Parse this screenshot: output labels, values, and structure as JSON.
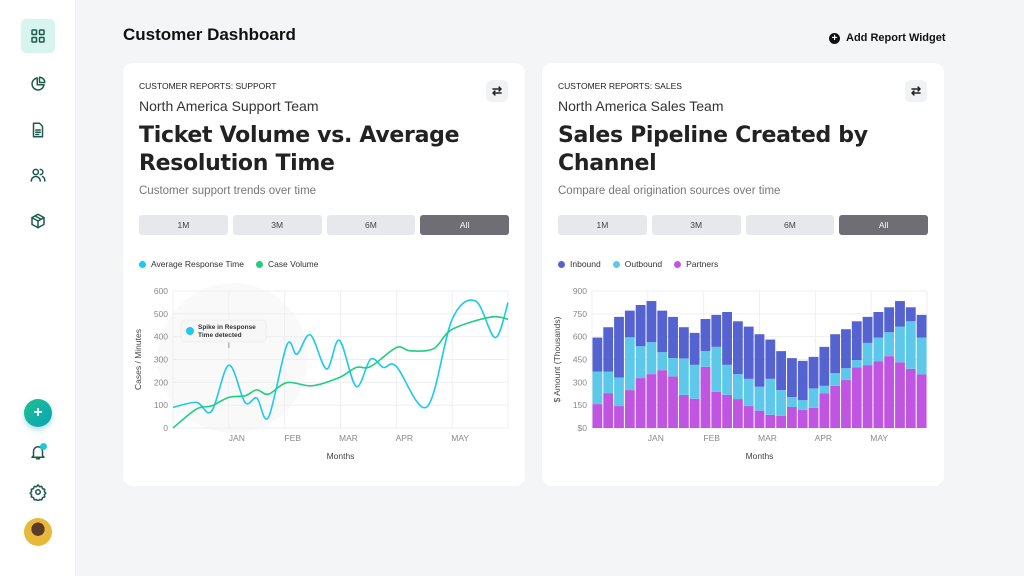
{
  "header": {
    "title": "Customer Dashboard",
    "add_widget": "Add Report Widget"
  },
  "sidebar": {
    "items": [
      "dashboard-grid",
      "pie-chart",
      "document",
      "users",
      "package"
    ],
    "bottom": [
      "add",
      "bell",
      "settings",
      "avatar"
    ]
  },
  "colors": {
    "accent": "#1d5a4c",
    "response": "#1ec8f0",
    "volume": "#1fce7e",
    "inbound": "#5463cf",
    "outbound": "#5ec8ea",
    "partners": "#c055e2"
  },
  "cards": [
    {
      "eyebrow": "CUSTOMER REPORTS: SUPPORT",
      "team": "North America Support Team",
      "title": "Ticket Volume vs. Average Resolution Time",
      "subtitle": "Customer support trends over time",
      "ranges": [
        "1M",
        "3M",
        "6M",
        "All"
      ],
      "selected_range": "All",
      "legend": [
        "Average Response Time",
        "Case Volume"
      ],
      "annotation": "Spike in Response Time detected"
    },
    {
      "eyebrow": "CUSTOMER REPORTS: SALES",
      "team": "North America Sales Team",
      "title": "Sales Pipeline Created by Channel",
      "subtitle": "Compare deal origination sources over time",
      "ranges": [
        "1M",
        "3M",
        "6M",
        "All"
      ],
      "selected_range": "All",
      "legend": [
        "Inbound",
        "Outbound",
        "Partners"
      ]
    }
  ],
  "chart_data": [
    {
      "type": "line",
      "xlabel": "Months",
      "ylabel": "Cases / Minutes",
      "ylim": [
        0,
        600
      ],
      "yticks": [
        "0",
        "100",
        "200",
        "300",
        "400",
        "500",
        "600"
      ],
      "xticks": [
        "JAN",
        "FEB",
        "MAR",
        "APR",
        "MAY"
      ],
      "xtick_positions": [
        1,
        2,
        3,
        4,
        5
      ],
      "xlim": [
        0,
        6
      ],
      "series": [
        {
          "name": "Average Response Time",
          "points": [
            [
              0,
              90
            ],
            [
              0.42,
              112
            ],
            [
              0.69,
              73
            ],
            [
              1,
              275
            ],
            [
              1.29,
              112
            ],
            [
              1.5,
              131
            ],
            [
              1.71,
              47
            ],
            [
              2.04,
              364
            ],
            [
              2.22,
              323
            ],
            [
              2.46,
              408
            ],
            [
              2.75,
              258
            ],
            [
              2.98,
              384
            ],
            [
              3.28,
              182
            ],
            [
              3.54,
              301
            ],
            [
              3.77,
              265
            ],
            [
              4,
              270
            ],
            [
              4.55,
              93
            ],
            [
              5,
              476
            ],
            [
              5.42,
              556
            ],
            [
              5.77,
              396
            ],
            [
              6,
              549
            ]
          ]
        },
        {
          "name": "Case Volume",
          "points": [
            [
              0,
              0
            ],
            [
              0.42,
              83
            ],
            [
              0.69,
              97
            ],
            [
              1,
              134
            ],
            [
              1.29,
              141
            ],
            [
              1.5,
              167
            ],
            [
              1.71,
              148
            ],
            [
              2.04,
              199
            ],
            [
              2.49,
              185
            ],
            [
              2.98,
              221
            ],
            [
              3.28,
              265
            ],
            [
              3.54,
              269
            ],
            [
              4,
              352
            ],
            [
              4.25,
              338
            ],
            [
              4.67,
              348
            ],
            [
              5,
              432
            ],
            [
              5.69,
              486
            ],
            [
              6,
              476
            ]
          ]
        }
      ]
    },
    {
      "type": "bar",
      "stacked": true,
      "xlabel": "Months",
      "ylabel": "$ Amount (Thousands)",
      "ylim": [
        0,
        900
      ],
      "yticks": [
        "$0",
        "150",
        "300",
        "450",
        "600",
        "750",
        "900"
      ],
      "xticks": [
        "JAN",
        "FEB",
        "MAR",
        "APR",
        "MAY"
      ],
      "xtick_positions": [
        1,
        2,
        3,
        4,
        5
      ],
      "series": [
        {
          "name": "Partners",
          "values": [
            157,
            229,
            144,
            249,
            328,
            354,
            380,
            339,
            218,
            192,
            402,
            238,
            218,
            190,
            144,
            114,
            87,
            79,
            138,
            118,
            133,
            227,
            277,
            315,
            398,
            413,
            439,
            472,
            432,
            389,
            352
          ]
        },
        {
          "name": "Outbound",
          "values": [
            214,
            142,
            188,
            347,
            209,
            210,
            118,
            120,
            239,
            223,
            103,
            295,
            197,
            164,
            179,
            157,
            236,
            170,
            65,
            65,
            127,
            50,
            83,
            78,
            48,
            146,
            155,
            157,
            234,
            312,
            242
          ]
        },
        {
          "name": "Inbound",
          "values": [
            223,
            291,
            398,
            175,
            271,
            270,
            273,
            271,
            205,
            210,
            211,
            210,
            347,
            347,
            343,
            345,
            258,
            256,
            256,
            258,
            207,
            256,
            256,
            256,
            255,
            171,
            168,
            164,
            168,
            92,
            149
          ]
        }
      ]
    }
  ]
}
